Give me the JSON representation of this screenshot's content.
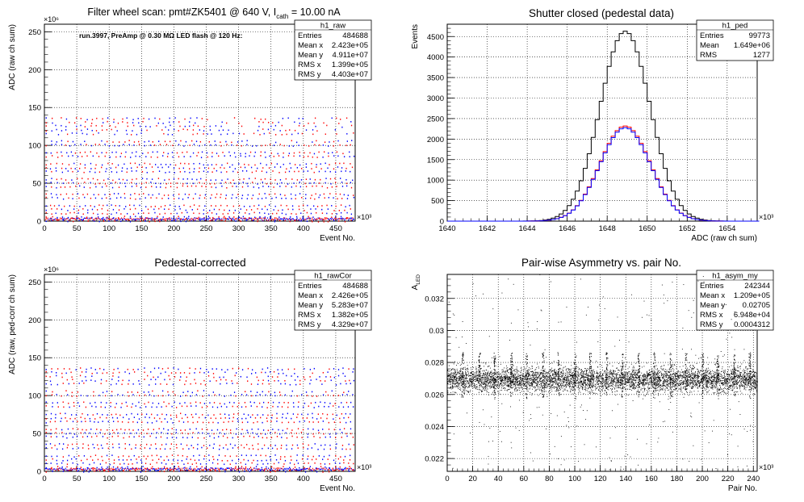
{
  "chart_data": [
    {
      "type": "scatter",
      "title": "Filter wheel scan: pmt#ZK5401 @   640 V, I",
      "title_sub": "cath",
      "title_tail": " = 10.00 nA",
      "annotation": "run.3997, PreAmp @ 0.30 MΩ LED flash @  120 Hz:",
      "xlabel": "Event No.",
      "ylabel": "ADC (raw ch sum)",
      "xlim": [
        0,
        480
      ],
      "ylim": [
        0,
        260
      ],
      "x_ticks": [
        0,
        50,
        100,
        150,
        200,
        250,
        300,
        350,
        400,
        450
      ],
      "y_ticks": [
        0,
        50,
        100,
        150,
        200,
        250
      ],
      "x_exponent": "×10³",
      "y_exponent": "×10⁶",
      "grid": true,
      "stats": {
        "name": "h1_raw",
        "rows": [
          [
            "Entries",
            "484688"
          ],
          [
            "Mean x",
            "2.423e+05"
          ],
          [
            "Mean y",
            "4.911e+07"
          ],
          [
            "RMS x",
            "1.399e+05"
          ],
          [
            "RMS y",
            "4.403e+07"
          ]
        ]
      },
      "levels": [
        0,
        5,
        10,
        15,
        20,
        30,
        35,
        45,
        50,
        55,
        65,
        70,
        75,
        85,
        90,
        100,
        105,
        115,
        120,
        125,
        130,
        135
      ],
      "colors": {
        "red": "#ff0000",
        "blue": "#0000ff"
      }
    },
    {
      "type": "histogram",
      "title": "Shutter closed (pedestal data)",
      "xlabel": "ADC (raw ch sum)",
      "ylabel": "Events",
      "xlim": [
        1640,
        1655.5
      ],
      "ylim": [
        0,
        4800
      ],
      "x_ticks": [
        1640,
        1642,
        1644,
        1646,
        1648,
        1650,
        1652,
        1654
      ],
      "y_ticks": [
        0,
        500,
        1000,
        1500,
        2000,
        2500,
        3000,
        3500,
        4000,
        4500
      ],
      "x_exponent": "×10³",
      "grid": true,
      "stats": {
        "name": "h1_ped",
        "rows": [
          [
            "Entries",
            "99773"
          ],
          [
            "Mean",
            "1.649e+06"
          ],
          [
            "RMS",
            "1277"
          ]
        ]
      },
      "series": [
        {
          "color": "#000000",
          "mean": 1648.9,
          "sigma": 1.25,
          "peak": 4630
        },
        {
          "color": "#ff0000",
          "mean": 1648.9,
          "sigma": 1.26,
          "peak": 2320
        },
        {
          "color": "#0000ff",
          "mean": 1648.9,
          "sigma": 1.26,
          "peak": 2280
        }
      ]
    },
    {
      "type": "scatter",
      "title": "Pedestal-corrected",
      "xlabel": "Event No.",
      "ylabel": "ADC (raw, ped-corr ch sum)",
      "xlim": [
        0,
        480
      ],
      "ylim": [
        0,
        260
      ],
      "x_ticks": [
        0,
        50,
        100,
        150,
        200,
        250,
        300,
        350,
        400,
        450
      ],
      "y_ticks": [
        0,
        50,
        100,
        150,
        200,
        250
      ],
      "x_exponent": "×10³",
      "y_exponent": "×10⁶",
      "grid": true,
      "stats": {
        "name": "h1_rawCor",
        "rows": [
          [
            "Entries",
            "484688"
          ],
          [
            "Mean x",
            "2.426e+05"
          ],
          [
            "Mean y",
            "5.283e+07"
          ],
          [
            "RMS x",
            "1.382e+05"
          ],
          [
            "RMS y",
            "4.329e+07"
          ]
        ]
      },
      "levels": [
        0,
        5,
        10,
        15,
        20,
        30,
        35,
        45,
        50,
        55,
        65,
        70,
        75,
        85,
        90,
        100,
        105,
        115,
        120,
        125,
        130,
        135
      ],
      "colors": {
        "red": "#ff0000",
        "blue": "#0000ff"
      }
    },
    {
      "type": "scatter",
      "title": "Pair-wise Asymmetry vs. pair No.",
      "xlabel": "Pair No.",
      "ylabel": "A",
      "ylabel_sub": "LED",
      "xlim": [
        0,
        243
      ],
      "ylim": [
        0.0212,
        0.0335
      ],
      "x_ticks": [
        0,
        20,
        40,
        60,
        80,
        100,
        120,
        140,
        160,
        180,
        200,
        220,
        240
      ],
      "y_ticks": [
        0.022,
        0.024,
        0.026,
        0.028,
        0.03,
        0.032
      ],
      "y_tick_labels": [
        "0.022",
        "0.024",
        "0.026",
        "0.028",
        "0.03",
        "0.032"
      ],
      "x_exponent": "×10³",
      "grid": true,
      "stats": {
        "name": "h1_asym_my",
        "rows": [
          [
            "Entries",
            "242344"
          ],
          [
            "Mean x",
            "1.209e+05"
          ],
          [
            "Mean y",
            "0.02705"
          ],
          [
            "RMS x",
            "6.948e+04"
          ],
          [
            "RMS y",
            "0.0004312"
          ]
        ]
      },
      "band": {
        "center": 0.02695,
        "halfwidth": 0.0006
      },
      "spike_x": [
        12,
        25,
        37,
        50,
        62,
        75,
        87,
        100,
        112,
        125,
        137,
        150,
        162,
        175,
        187,
        200,
        212,
        225,
        237
      ],
      "color": "#000000"
    }
  ]
}
